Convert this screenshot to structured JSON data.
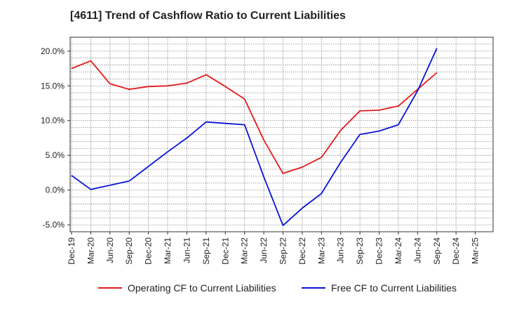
{
  "chart_data": {
    "type": "line",
    "title": "[4611]  Trend of Cashflow Ratio to Current Liabilities",
    "xlabel": "",
    "ylabel": "",
    "categories": [
      "Dec-19",
      "Mar-20",
      "Jun-20",
      "Sep-20",
      "Dec-20",
      "Mar-21",
      "Jun-21",
      "Sep-21",
      "Dec-21",
      "Mar-22",
      "Jun-22",
      "Sep-22",
      "Dec-22",
      "Mar-23",
      "Jun-23",
      "Sep-23",
      "Dec-23",
      "Mar-24",
      "Jun-24",
      "Sep-24",
      "Dec-24",
      "Mar-25"
    ],
    "ylim": [
      -6.0,
      22.0
    ],
    "yticks": [
      -5.0,
      0.0,
      5.0,
      10.0,
      15.0,
      20.0
    ],
    "ytick_labels": [
      "-5.0%",
      "0.0%",
      "5.0%",
      "10.0%",
      "15.0%",
      "20.0%"
    ],
    "grid": true,
    "legend_position": "bottom",
    "series": [
      {
        "name": "Operating CF to Current Liabilities",
        "color": "#e31a1c",
        "values": [
          17.5,
          18.6,
          15.3,
          14.5,
          14.9,
          15.0,
          15.4,
          16.6,
          14.9,
          13.1,
          7.2,
          2.4,
          3.3,
          4.7,
          8.6,
          11.4,
          11.5,
          12.1,
          14.5,
          16.9,
          null,
          null
        ]
      },
      {
        "name": "Free CF to Current Liabilities",
        "color": "#0a14d4",
        "values": [
          2.1,
          0.1,
          0.7,
          1.3,
          3.4,
          5.5,
          7.5,
          9.8,
          9.6,
          9.4,
          1.9,
          -5.1,
          -2.6,
          -0.5,
          4.0,
          8.0,
          8.5,
          9.4,
          14.3,
          20.4,
          null,
          null
        ]
      }
    ]
  }
}
